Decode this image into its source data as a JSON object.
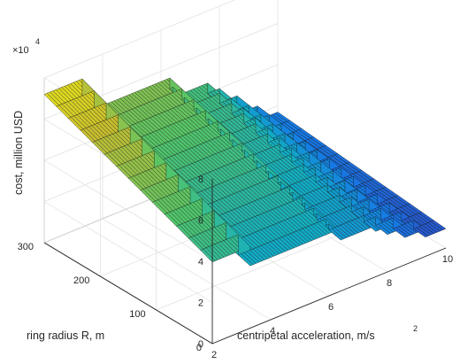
{
  "chart_data": {
    "type": "surface",
    "colormap": "parula",
    "exponent_label": "×10",
    "exponent_power": "4",
    "zlabel": "cost, million USD",
    "ylabel": "ring radius R, m",
    "xlabel_main": "centripetal acceleration, m/s",
    "xlabel_sup": "2",
    "xlim": [
      2,
      10
    ],
    "ylim": [
      0,
      300
    ],
    "zlim": [
      0,
      80000
    ],
    "x_ticks": [
      "2",
      "4",
      "6",
      "8",
      "10"
    ],
    "y_ticks": [
      "0",
      "100",
      "200",
      "300"
    ],
    "z_ticks": [
      "0",
      "2",
      "4",
      "6",
      "8"
    ],
    "grid": true,
    "steps": [
      {
        "x_from": 2.0,
        "x_to": 3.3,
        "z": 72000
      },
      {
        "x_from": 3.3,
        "x_to": 6.3,
        "z": 55000
      },
      {
        "x_from": 6.3,
        "x_to": 6.4,
        "z": 50000
      },
      {
        "x_from": 6.4,
        "x_to": 7.6,
        "z": 45000
      },
      {
        "x_from": 7.6,
        "x_to": 8.0,
        "z": 40000
      },
      {
        "x_from": 8.0,
        "x_to": 8.6,
        "z": 33000
      },
      {
        "x_from": 8.6,
        "x_to": 9.3,
        "z": 24000
      },
      {
        "x_from": 9.3,
        "x_to": 10.0,
        "z": 17000
      }
    ],
    "slope_along_y": 3.0
  }
}
